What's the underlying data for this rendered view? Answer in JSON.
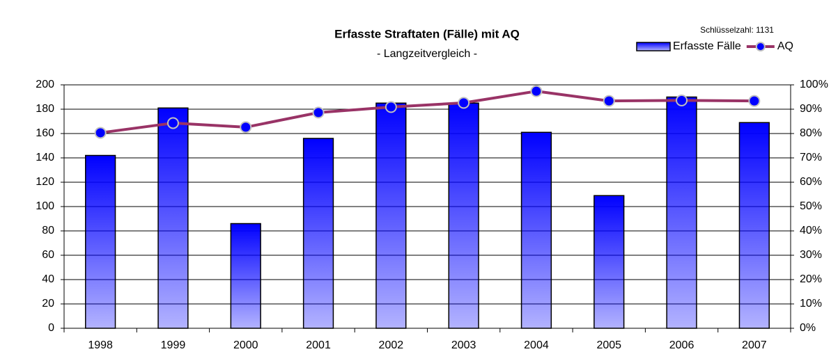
{
  "chart_data": {
    "type": "bar",
    "title": "Erfasste Straftaten (Fälle) mit AQ",
    "subtitle": "- Langzeitvergleich -",
    "annotation": "Schlüsselzahl:  1131",
    "categories": [
      "1998",
      "1999",
      "2000",
      "2001",
      "2002",
      "2003",
      "2004",
      "2005",
      "2006",
      "2007"
    ],
    "series": [
      {
        "name": "Erfasste Fälle",
        "type": "bar",
        "axis": "y",
        "color": "#0000ff",
        "values": [
          142,
          181,
          86,
          156,
          185,
          185,
          161,
          109,
          190,
          169
        ]
      },
      {
        "name": "AQ",
        "type": "line",
        "axis": "y2",
        "color": "#993366",
        "values": [
          80.3,
          84.3,
          82.6,
          88.6,
          90.9,
          92.6,
          97.4,
          93.4,
          93.6,
          93.4
        ]
      }
    ],
    "ylim": [
      0,
      200
    ],
    "yticks": [
      0,
      20,
      40,
      60,
      80,
      100,
      120,
      140,
      160,
      180,
      200
    ],
    "y2lim": [
      0,
      100
    ],
    "y2ticks": [
      {
        "value": 0,
        "label": "0%"
      },
      {
        "value": 10,
        "label": "10%"
      },
      {
        "value": 20,
        "label": "20%"
      },
      {
        "value": 30,
        "label": "30%"
      },
      {
        "value": 40,
        "label": "40%"
      },
      {
        "value": 50,
        "label": "50%"
      },
      {
        "value": 60,
        "label": "60%"
      },
      {
        "value": 70,
        "label": "70%"
      },
      {
        "value": 80,
        "label": "80%"
      },
      {
        "value": 90,
        "label": "90%"
      },
      {
        "value": 100,
        "label": "100%"
      }
    ],
    "grid": true,
    "legend": "top-right"
  }
}
